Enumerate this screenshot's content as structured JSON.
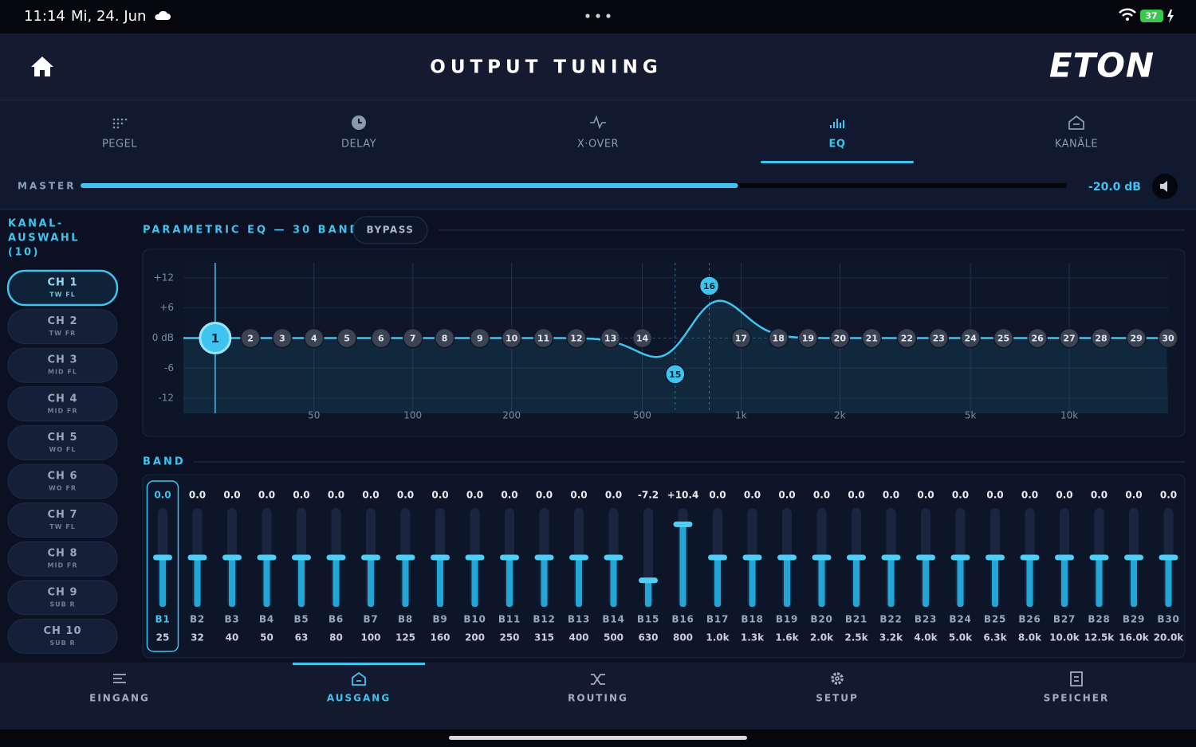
{
  "status_bar": {
    "time": "11:14",
    "date": "Mi, 24. Jun",
    "battery": "37"
  },
  "header": {
    "title": "OUTPUT TUNING",
    "logo": "ETON"
  },
  "tabs": {
    "items": [
      "PEGEL",
      "DELAY",
      "X·OVER",
      "EQ",
      "KANÄLE"
    ],
    "active": 3
  },
  "master": {
    "label": "MASTER",
    "value": {
      "value": -20,
      "label": "-20.0 dB"
    },
    "lim": [
      -60,
      0
    ]
  },
  "channels": {
    "title_lines": [
      "KANAL-",
      "AUSWAHL",
      "(10)"
    ],
    "active": 0,
    "items": [
      {
        "name": "CH 1",
        "sub": "TW FL"
      },
      {
        "name": "CH 2",
        "sub": "TW FR"
      },
      {
        "name": "CH 3",
        "sub": "MID FL"
      },
      {
        "name": "CH 4",
        "sub": "MID FR"
      },
      {
        "name": "CH 5",
        "sub": "WO FL"
      },
      {
        "name": "CH 6",
        "sub": "WO FR"
      },
      {
        "name": "CH 7",
        "sub": "TW FL"
      },
      {
        "name": "CH 8",
        "sub": "MID FR"
      },
      {
        "name": "CH 9",
        "sub": "SUB R"
      },
      {
        "name": "CH 10",
        "sub": "SUB R"
      }
    ]
  },
  "eq": {
    "title": "PARAMETRIC EQ — 30 BAND",
    "bypass": "BYPASS",
    "x_scale": "log",
    "xlim": [
      20,
      20000
    ],
    "xticks": [
      50,
      100,
      200,
      500,
      {
        "value": 1000,
        "label": "1k"
      },
      {
        "value": 2000,
        "label": "2k"
      },
      {
        "value": 5000,
        "label": "5k"
      },
      {
        "value": 10000,
        "label": "10k"
      }
    ],
    "ylim": [
      -15,
      15
    ],
    "yticks": [
      {
        "value": 12,
        "label": "+12"
      },
      {
        "value": 6,
        "label": "+6"
      },
      {
        "value": 0,
        "label": "0 dB"
      },
      -6,
      -12
    ]
  },
  "band": {
    "title": "BAND",
    "selected": 0,
    "items": [
      {
        "node": 1,
        "name": "B1",
        "freq": 25,
        "gain": {
          "value": 0,
          "label": "0.0"
        }
      },
      {
        "node": 2,
        "name": "B2",
        "freq": 32,
        "gain": {
          "value": 0,
          "label": "0.0"
        }
      },
      {
        "node": 3,
        "name": "B3",
        "freq": 40,
        "gain": {
          "value": 0,
          "label": "0.0"
        }
      },
      {
        "node": 4,
        "name": "B4",
        "freq": 50,
        "gain": {
          "value": 0,
          "label": "0.0"
        }
      },
      {
        "node": 5,
        "name": "B5",
        "freq": 63,
        "gain": {
          "value": 0,
          "label": "0.0"
        }
      },
      {
        "node": 6,
        "name": "B6",
        "freq": 80,
        "gain": {
          "value": 0,
          "label": "0.0"
        }
      },
      {
        "node": 7,
        "name": "B7",
        "freq": 100,
        "gain": {
          "value": 0,
          "label": "0.0"
        }
      },
      {
        "node": 8,
        "name": "B8",
        "freq": 125,
        "gain": {
          "value": 0,
          "label": "0.0"
        }
      },
      {
        "node": 9,
        "name": "B9",
        "freq": 160,
        "gain": {
          "value": 0,
          "label": "0.0"
        }
      },
      {
        "node": 10,
        "name": "B10",
        "freq": 200,
        "gain": {
          "value": 0,
          "label": "0.0"
        }
      },
      {
        "node": 11,
        "name": "B11",
        "freq": 250,
        "gain": {
          "value": 0,
          "label": "0.0"
        }
      },
      {
        "node": 12,
        "name": "B12",
        "freq": 315,
        "gain": {
          "value": 0,
          "label": "0.0"
        }
      },
      {
        "node": 13,
        "name": "B13",
        "freq": 400,
        "gain": {
          "value": 0,
          "label": "0.0"
        }
      },
      {
        "node": 14,
        "name": "B14",
        "freq": 500,
        "gain": {
          "value": 0,
          "label": "0.0"
        }
      },
      {
        "node": 15,
        "name": "B15",
        "freq": 630,
        "gain": -7.2
      },
      {
        "node": 16,
        "name": "B16",
        "freq": 800,
        "gain": {
          "value": 10.4,
          "label": "+10.4"
        }
      },
      {
        "node": 17,
        "name": "B17",
        "freq": {
          "value": 1000,
          "label": "1.0k"
        },
        "gain": {
          "value": 0,
          "label": "0.0"
        }
      },
      {
        "node": 18,
        "name": "B18",
        "freq": {
          "value": 1300,
          "label": "1.3k"
        },
        "gain": {
          "value": 0,
          "label": "0.0"
        }
      },
      {
        "node": 19,
        "name": "B19",
        "freq": {
          "value": 1600,
          "label": "1.6k"
        },
        "gain": {
          "value": 0,
          "label": "0.0"
        }
      },
      {
        "node": 20,
        "name": "B20",
        "freq": {
          "value": 2000,
          "label": "2.0k"
        },
        "gain": {
          "value": 0,
          "label": "0.0"
        }
      },
      {
        "node": 21,
        "name": "B21",
        "freq": {
          "value": 2500,
          "label": "2.5k"
        },
        "gain": {
          "value": 0,
          "label": "0.0"
        }
      },
      {
        "node": 22,
        "name": "B22",
        "freq": {
          "value": 3200,
          "label": "3.2k"
        },
        "gain": {
          "value": 0,
          "label": "0.0"
        }
      },
      {
        "node": 23,
        "name": "B23",
        "freq": {
          "value": 4000,
          "label": "4.0k"
        },
        "gain": {
          "value": 0,
          "label": "0.0"
        }
      },
      {
        "node": 24,
        "name": "B24",
        "freq": {
          "value": 5000,
          "label": "5.0k"
        },
        "gain": {
          "value": 0,
          "label": "0.0"
        }
      },
      {
        "node": 25,
        "name": "B25",
        "freq": {
          "value": 6300,
          "label": "6.3k"
        },
        "gain": {
          "value": 0,
          "label": "0.0"
        }
      },
      {
        "node": 26,
        "name": "B26",
        "freq": {
          "value": 8000,
          "label": "8.0k"
        },
        "gain": {
          "value": 0,
          "label": "0.0"
        }
      },
      {
        "node": 27,
        "name": "B27",
        "freq": {
          "value": 10000,
          "label": "10.0k"
        },
        "gain": {
          "value": 0,
          "label": "0.0"
        }
      },
      {
        "node": 28,
        "name": "B28",
        "freq": {
          "value": 12500,
          "label": "12.5k"
        },
        "gain": {
          "value": 0,
          "label": "0.0"
        }
      },
      {
        "node": 29,
        "name": "B29",
        "freq": {
          "value": 16000,
          "label": "16.0k"
        },
        "gain": {
          "value": 0,
          "label": "0.0"
        }
      },
      {
        "node": 30,
        "name": "B30",
        "freq": {
          "value": 20000,
          "label": "20.0k"
        },
        "gain": {
          "value": 0,
          "label": "0.0"
        }
      }
    ]
  },
  "bottom_nav": {
    "items": [
      "EINGANG",
      "AUSGANG",
      "ROUTING",
      "SETUP",
      "SPEICHER"
    ],
    "active": 1
  }
}
